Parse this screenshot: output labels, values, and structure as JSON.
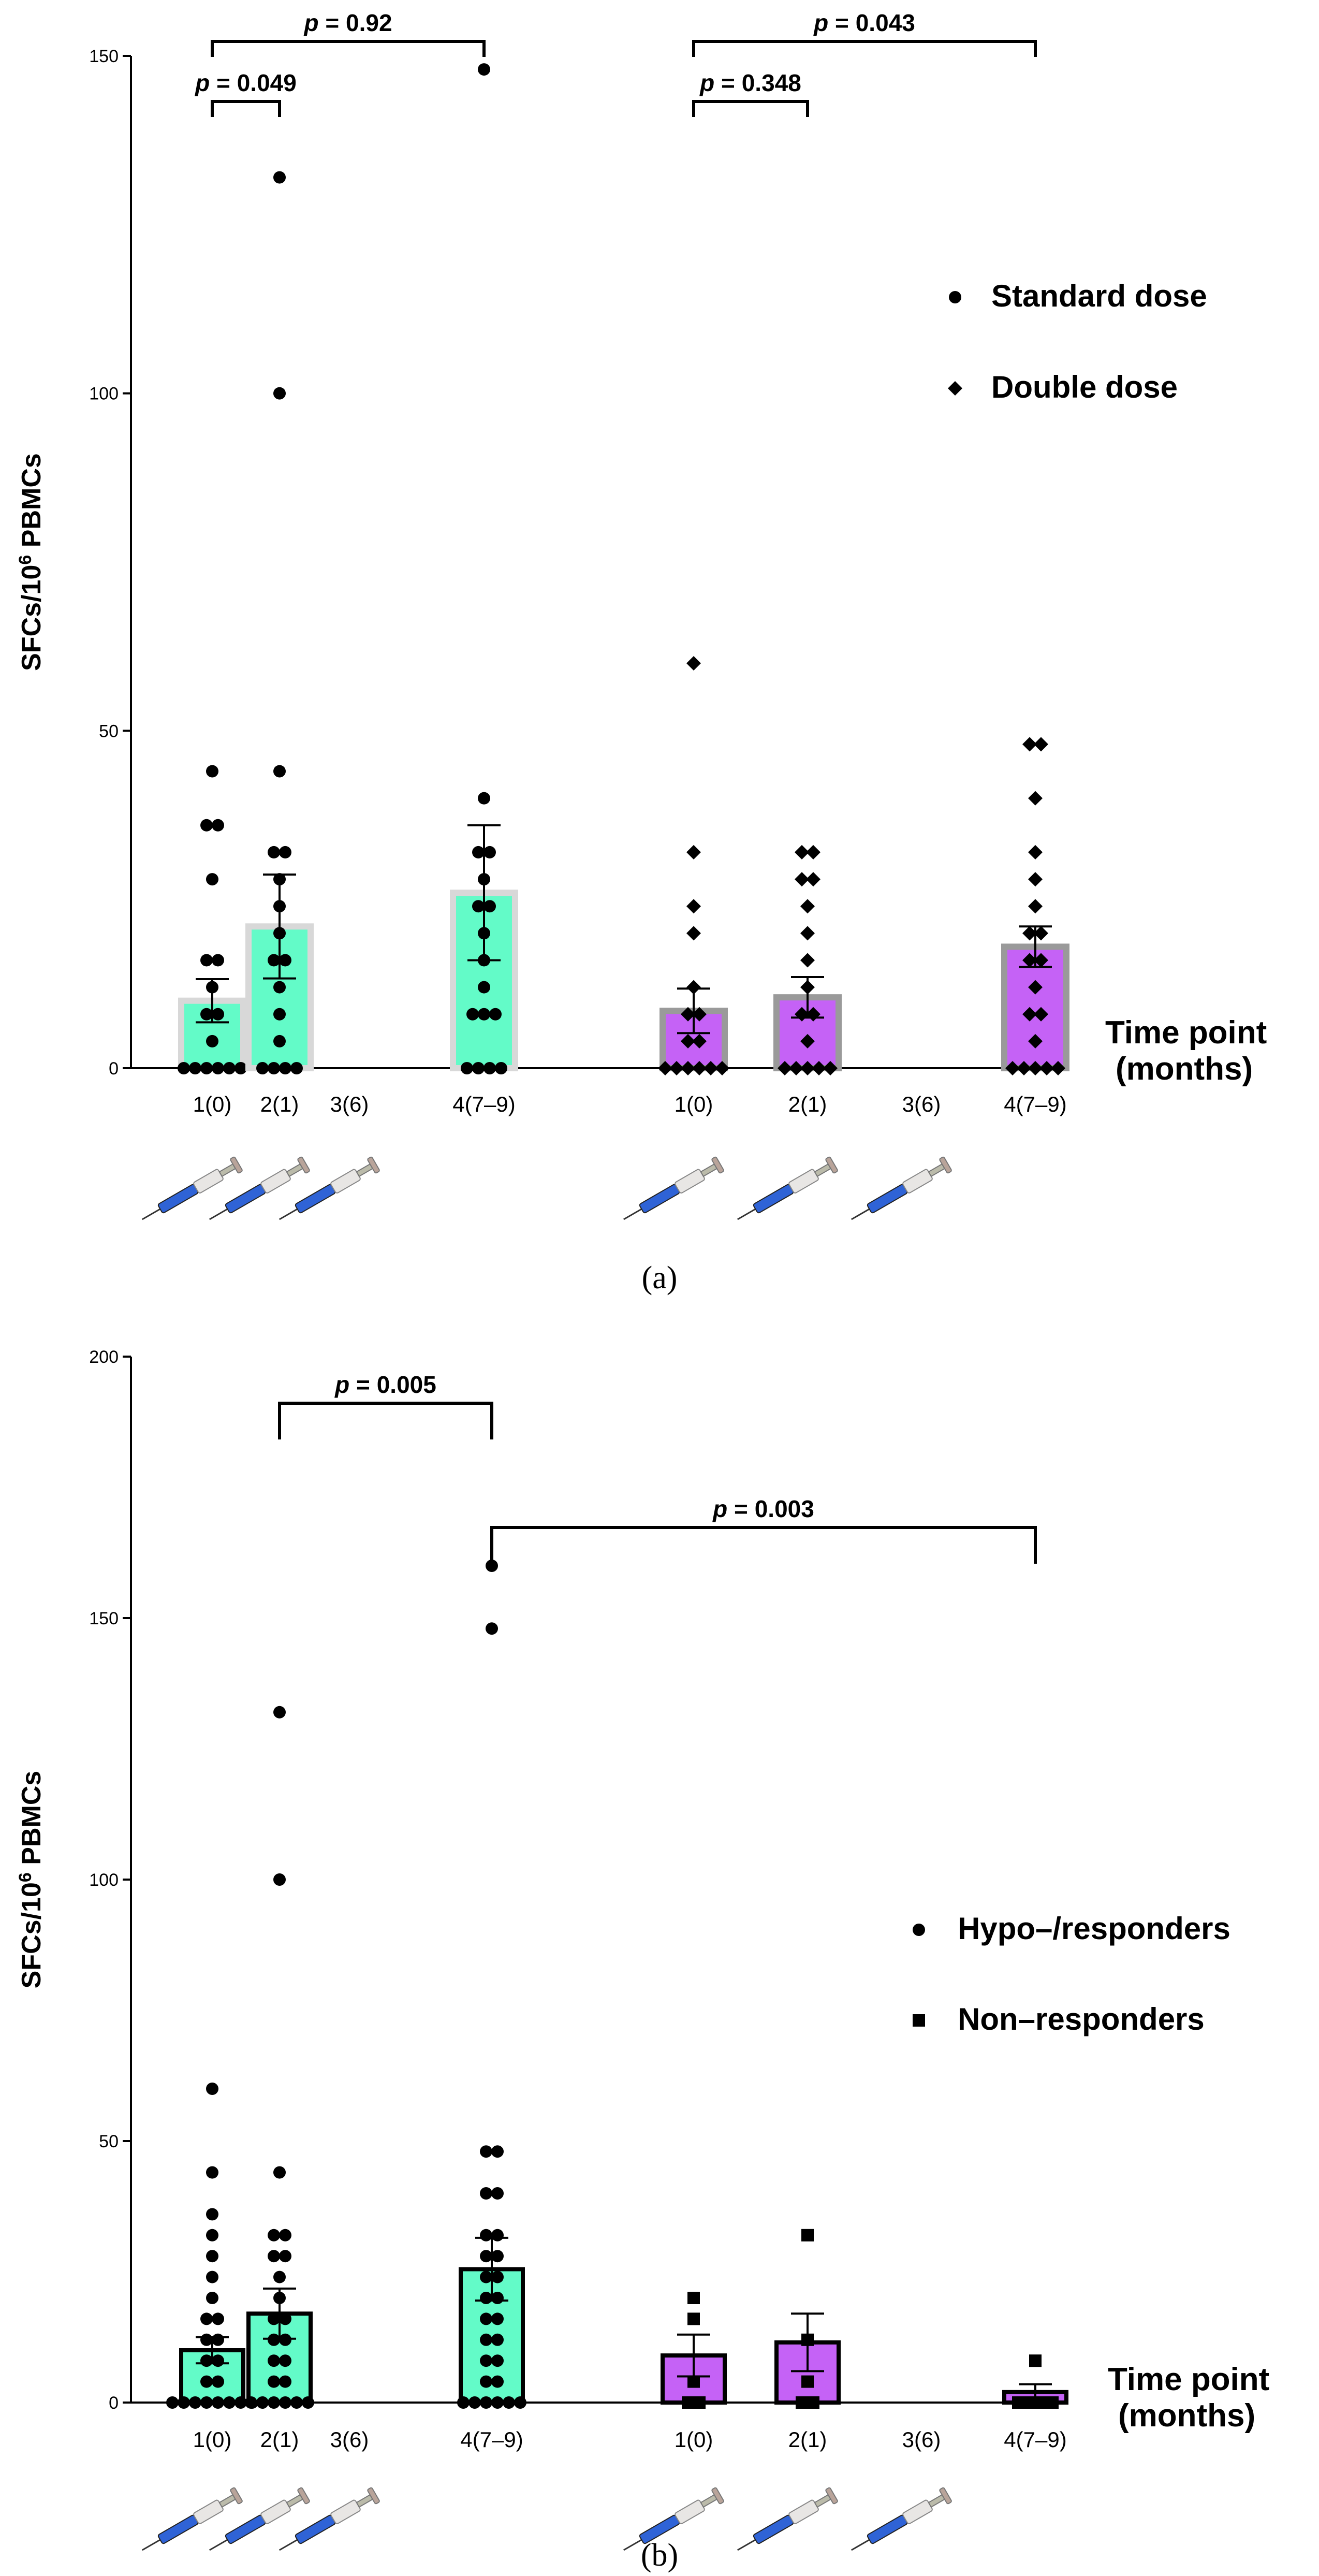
{
  "chart_data": [
    {
      "type": "bar",
      "panel": "a",
      "caption": "(a)",
      "ylabel": "SFCs/10^6 PBMCs",
      "ylim": [
        0,
        150
      ],
      "yticks": [
        0,
        50,
        100,
        150
      ],
      "xlabel_lines": [
        "Time point",
        "(months)"
      ],
      "categories": [
        "1(0)",
        "2(1)",
        "3(6)",
        "4(7–9)",
        "1(0)",
        "2(1)",
        "3(6)",
        "4(7–9)"
      ],
      "legend": [
        {
          "marker": "circle",
          "label": "Standard dose"
        },
        {
          "marker": "diamond",
          "label": "Double dose"
        }
      ],
      "series": [
        {
          "name": "Standard dose",
          "marker": "circle",
          "color": "#63fbc8",
          "edge": "#d8d8d8",
          "groups": [
            {
              "category": "1(0)",
              "mean": 10,
              "sem": 3.2,
              "points": [
                44,
                36,
                36,
                28,
                16,
                16,
                12,
                8,
                8,
                4,
                0,
                0,
                0,
                0,
                0,
                0
              ]
            },
            {
              "category": "2(1)",
              "mean": 21,
              "sem": 7.7,
              "points": [
                132,
                100,
                44,
                32,
                32,
                28,
                24,
                20,
                16,
                16,
                12,
                8,
                4,
                0,
                0,
                0,
                0
              ]
            },
            {
              "category": "3(6)",
              "mean": null,
              "sem": null,
              "points": []
            },
            {
              "category": "4(7–9)",
              "mean": 26,
              "sem": 10,
              "points": [
                148,
                40,
                32,
                32,
                28,
                24,
                24,
                20,
                16,
                12,
                8,
                8,
                8,
                0,
                0,
                0,
                0
              ]
            }
          ]
        },
        {
          "name": "Double dose",
          "marker": "diamond",
          "color": "#c562f6",
          "edge": "#9a9a9a",
          "groups": [
            {
              "category": "1(0)",
              "mean": 8.5,
              "sem": 3.3,
              "points": [
                60,
                32,
                24,
                20,
                12,
                8,
                8,
                4,
                4,
                0,
                0,
                0,
                0,
                0,
                0
              ]
            },
            {
              "category": "2(1)",
              "mean": 10.5,
              "sem": 3,
              "points": [
                32,
                32,
                28,
                28,
                24,
                20,
                16,
                12,
                8,
                8,
                4,
                0,
                0,
                0,
                0,
                0
              ]
            },
            {
              "category": "3(6)",
              "mean": null,
              "sem": null,
              "points": []
            },
            {
              "category": "4(7–9)",
              "mean": 18,
              "sem": 3,
              "points": [
                48,
                48,
                40,
                32,
                28,
                24,
                20,
                20,
                16,
                16,
                12,
                8,
                8,
                4,
                0,
                0,
                0,
                0,
                0
              ]
            }
          ]
        }
      ],
      "comparisons": [
        {
          "label": "p = 0.92",
          "from": 0,
          "to": 3
        },
        {
          "label": "p = 0.049",
          "from": 0,
          "to": 1
        },
        {
          "label": "p = 0.043",
          "from": 4,
          "to": 7
        },
        {
          "label": "p = 0.348",
          "from": 4,
          "to": 5
        }
      ]
    },
    {
      "type": "bar",
      "panel": "b",
      "caption": "(b)",
      "ylabel": "SFCs/10^6 PBMCs",
      "ylim": [
        0,
        200
      ],
      "yticks": [
        0,
        50,
        100,
        150,
        200
      ],
      "xlabel_lines": [
        "Time point",
        "(months)"
      ],
      "categories": [
        "1(0)",
        "2(1)",
        "3(6)",
        "4(7–9)",
        "1(0)",
        "2(1)",
        "3(6)",
        "4(7–9)"
      ],
      "legend": [
        {
          "marker": "circle",
          "label": "Hypo–/responders"
        },
        {
          "marker": "square",
          "label": "Non–responders"
        }
      ],
      "series": [
        {
          "name": "Hypo–/responders",
          "marker": "circle",
          "color": "#63fbc8",
          "edge": "#000000",
          "groups": [
            {
              "category": "1(0)",
              "mean": 10,
              "sem": 2.5,
              "points": [
                60,
                44,
                36,
                32,
                28,
                24,
                20,
                16,
                16,
                12,
                12,
                8,
                8,
                4,
                4,
                0,
                0,
                0,
                0,
                0,
                0,
                0,
                0
              ]
            },
            {
              "category": "2(1)",
              "mean": 17,
              "sem": 4.8,
              "points": [
                132,
                100,
                44,
                32,
                32,
                28,
                28,
                24,
                20,
                16,
                16,
                12,
                12,
                8,
                8,
                4,
                4,
                0,
                0,
                0,
                0,
                0,
                0
              ]
            },
            {
              "category": "3(6)",
              "mean": null,
              "sem": null,
              "points": []
            },
            {
              "category": "4(7–9)",
              "mean": 25.5,
              "sem": 6,
              "points": [
                160,
                148,
                48,
                48,
                40,
                40,
                32,
                32,
                28,
                28,
                24,
                24,
                20,
                20,
                16,
                16,
                12,
                12,
                8,
                8,
                4,
                4,
                0,
                0,
                0,
                0,
                0,
                0
              ]
            }
          ]
        },
        {
          "name": "Non–responders",
          "marker": "square",
          "color": "#c562f6",
          "edge": "#000000",
          "groups": [
            {
              "category": "1(0)",
              "mean": 9,
              "sem": 4,
              "points": [
                20,
                16,
                4,
                0,
                0
              ]
            },
            {
              "category": "2(1)",
              "mean": 11.5,
              "sem": 5.5,
              "points": [
                32,
                12,
                4,
                0,
                0
              ]
            },
            {
              "category": "3(6)",
              "mean": null,
              "sem": null,
              "points": []
            },
            {
              "category": "4(7–9)",
              "mean": 2,
              "sem": 1.5,
              "points": [
                8,
                0,
                0,
                0,
                0
              ]
            }
          ]
        }
      ],
      "comparisons": [
        {
          "label": "p = 0.005",
          "from": 1,
          "to": 3
        },
        {
          "label": "p = 0.003",
          "from": 3,
          "to": 7
        }
      ]
    }
  ]
}
